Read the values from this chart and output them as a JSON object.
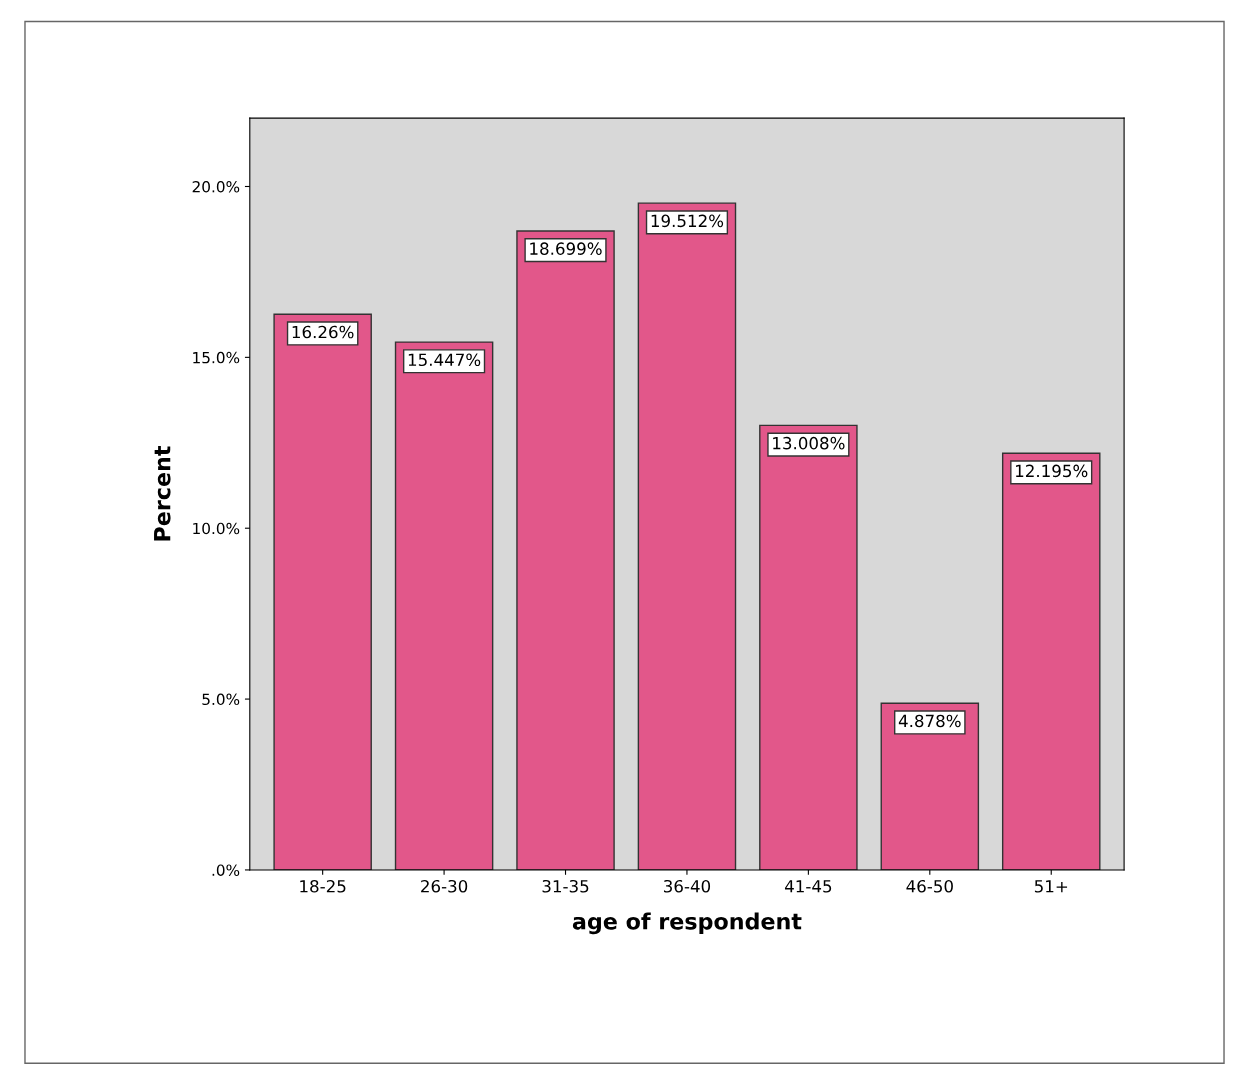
{
  "chart_data": {
    "type": "bar",
    "xlabel": "age of respondent",
    "ylabel": "Percent",
    "categories": [
      "18-25",
      "26-30",
      "31-35",
      "36-40",
      "41-45",
      "46-50",
      "51+"
    ],
    "values": [
      16.26,
      15.447,
      18.699,
      19.512,
      13.008,
      4.878,
      12.195
    ],
    "value_labels": [
      "16.26%",
      "15.447%",
      "18.699%",
      "19.512%",
      "13.008%",
      "4.878%",
      "12.195%"
    ],
    "color": "#e2578a",
    "ylim": [
      0,
      22
    ],
    "yticks": [
      {
        "value": 0,
        "label": ".0%"
      },
      {
        "value": 5,
        "label": "5.0%"
      },
      {
        "value": 10,
        "label": "10.0%"
      },
      {
        "value": 15,
        "label": "15.0%"
      },
      {
        "value": 20,
        "label": "20.0%"
      }
    ],
    "grid": false
  }
}
